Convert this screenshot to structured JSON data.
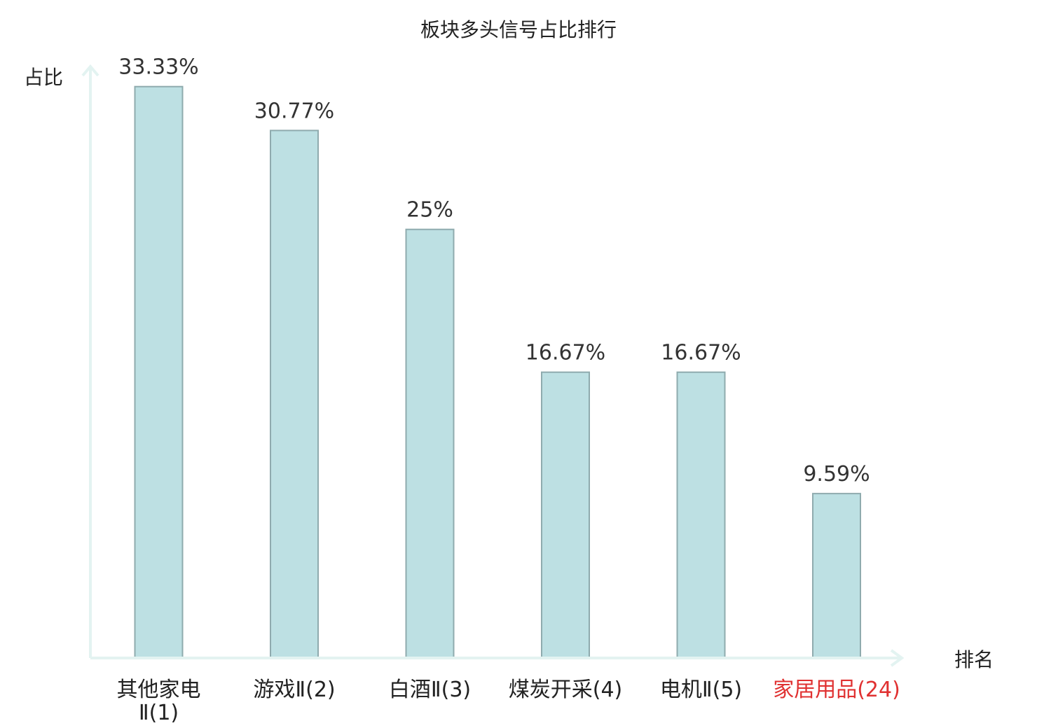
{
  "chart_data": {
    "type": "bar",
    "title": "板块多头信号占比排行",
    "ylabel": "占比",
    "xlabel": "排名",
    "ylim": [
      0,
      34.5
    ],
    "grid": false,
    "categories": [
      [
        "其他家电",
        "Ⅱ(1)"
      ],
      [
        "游戏Ⅱ(2)"
      ],
      [
        "白酒Ⅱ(3)"
      ],
      [
        "煤炭开采(4)"
      ],
      [
        "电机Ⅱ(5)"
      ],
      [
        "家居用品(24)"
      ]
    ],
    "values": [
      33.33,
      30.77,
      25,
      16.67,
      16.67,
      9.59
    ],
    "value_labels": [
      "33.33%",
      "30.77%",
      "25%",
      "16.67%",
      "16.67%",
      "9.59%"
    ],
    "highlight_index": 5,
    "colors": {
      "bar_fill": "#bde0e3",
      "bar_stroke": "#8fabae",
      "axis": "#e3f3f1",
      "highlight_text": "#e03131",
      "text": "#222222"
    }
  }
}
